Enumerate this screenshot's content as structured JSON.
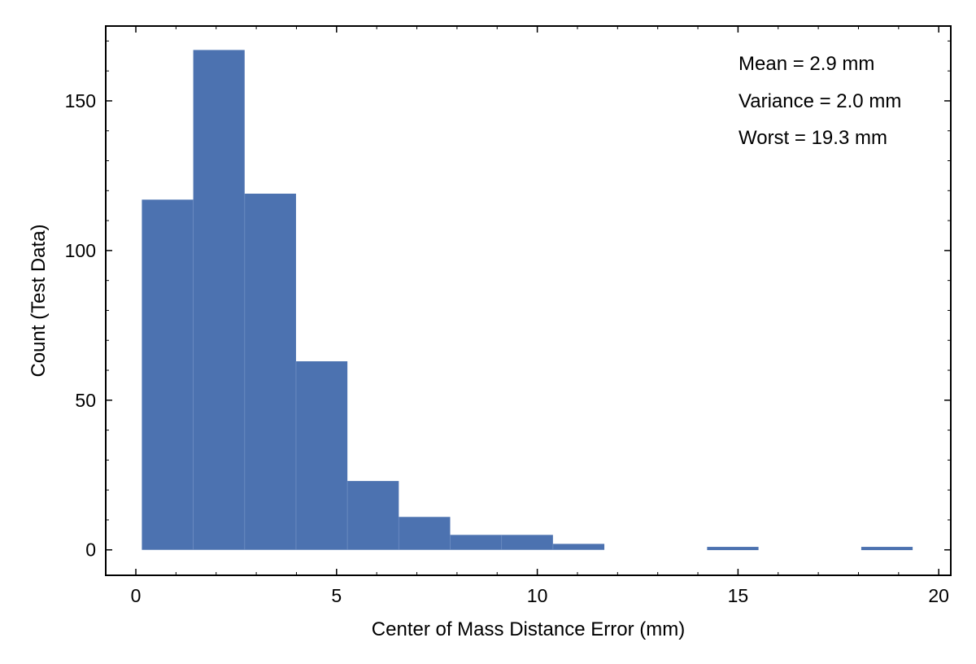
{
  "chart_data": {
    "type": "bar",
    "subtype": "histogram",
    "title": "",
    "xlabel": "Center of Mass Distance Error (mm)",
    "ylabel": "Count (Test Data)",
    "xlim": [
      -0.75,
      20.3
    ],
    "ylim": [
      -8.5,
      175
    ],
    "xticks": [
      0,
      5,
      10,
      15,
      20
    ],
    "yticks": [
      0,
      50,
      100,
      150
    ],
    "grid": false,
    "bar_color": "#4c72b0",
    "bins": [
      {
        "x0": 0.15,
        "x1": 1.43,
        "count": 117
      },
      {
        "x0": 1.43,
        "x1": 2.71,
        "count": 167
      },
      {
        "x0": 2.71,
        "x1": 3.99,
        "count": 119
      },
      {
        "x0": 3.99,
        "x1": 5.27,
        "count": 63
      },
      {
        "x0": 5.27,
        "x1": 6.55,
        "count": 23
      },
      {
        "x0": 6.55,
        "x1": 7.83,
        "count": 11
      },
      {
        "x0": 7.83,
        "x1": 9.11,
        "count": 5
      },
      {
        "x0": 9.11,
        "x1": 10.39,
        "count": 5
      },
      {
        "x0": 10.39,
        "x1": 11.67,
        "count": 2
      },
      {
        "x0": 11.67,
        "x1": 12.95,
        "count": 0
      },
      {
        "x0": 12.95,
        "x1": 14.23,
        "count": 0
      },
      {
        "x0": 14.23,
        "x1": 15.51,
        "count": 1
      },
      {
        "x0": 15.51,
        "x1": 16.79,
        "count": 0
      },
      {
        "x0": 16.79,
        "x1": 18.07,
        "count": 0
      },
      {
        "x0": 18.07,
        "x1": 19.35,
        "count": 1
      }
    ],
    "annotations": [
      "Mean = 2.9 mm",
      "Variance = 2.0 mm",
      "Worst = 19.3 mm"
    ],
    "legend": "none"
  }
}
